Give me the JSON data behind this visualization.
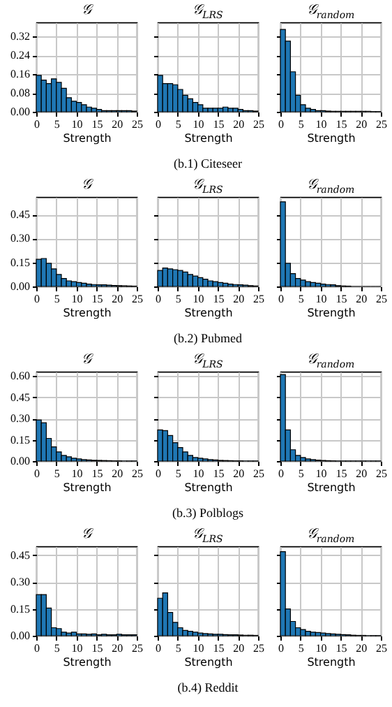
{
  "chart_data": [
    {
      "type": "histogram",
      "title": "𝒢",
      "xlabel": "Strength",
      "bins": [
        0,
        1.25,
        2.5,
        3.75,
        5,
        6.25,
        7.5,
        8.75,
        10,
        11.25,
        12.5,
        13.75,
        15,
        16.25,
        17.5,
        18.75,
        20,
        21.25,
        22.5,
        23.75,
        25
      ],
      "values": [
        0.155,
        0.135,
        0.12,
        0.14,
        0.125,
        0.1,
        0.06,
        0.045,
        0.04,
        0.03,
        0.02,
        0.015,
        0.01,
        0.005,
        0.005,
        0.005,
        0.005,
        0.005,
        0.005,
        0.003
      ],
      "color": "#1f77b4",
      "xlim": [
        0,
        25
      ],
      "xticks": [
        0,
        5,
        10,
        15,
        20,
        25
      ],
      "ylim": [
        0,
        0.38
      ],
      "yticks": [
        {
          "value": 0,
          "label": "0.00"
        },
        {
          "value": 0.08,
          "label": "0.08"
        },
        {
          "value": 0.16,
          "label": "0.16"
        },
        {
          "value": 0.24,
          "label": "0.24"
        },
        {
          "value": 0.32,
          "label": "0.32"
        }
      ],
      "grid": true
    },
    {
      "type": "histogram",
      "title": "𝒢$_{LRS}$",
      "xlabel": "Strength",
      "annotations": [
        "(b.1) Citeseer"
      ],
      "bins": [
        0,
        1.25,
        2.5,
        3.75,
        5,
        6.25,
        7.5,
        8.75,
        10,
        11.25,
        12.5,
        13.75,
        15,
        16.25,
        17.5,
        18.75,
        20,
        21.25,
        22.5,
        23.75,
        25
      ],
      "values": [
        0.155,
        0.12,
        0.12,
        0.115,
        0.095,
        0.07,
        0.055,
        0.04,
        0.03,
        0.015,
        0.015,
        0.015,
        0.015,
        0.02,
        0.015,
        0.015,
        0.01,
        0.005,
        0.005,
        0.003
      ],
      "color": "#1f77b4",
      "xlim": [
        0,
        25
      ],
      "xticks": [
        0,
        5,
        10,
        15,
        20,
        25
      ],
      "ylim": [
        0,
        0.38
      ],
      "yticks": [
        {
          "value": 0,
          "label": null
        },
        {
          "value": 0.08,
          "label": null
        },
        {
          "value": 0.16,
          "label": null
        },
        {
          "value": 0.24,
          "label": null
        },
        {
          "value": 0.32,
          "label": null
        }
      ],
      "grid": true,
      "tick_labels": "x"
    },
    {
      "type": "histogram",
      "title": "𝒢$_{random}$",
      "xlabel": "Strength",
      "bins": [
        0,
        1.25,
        2.5,
        3.75,
        5,
        6.25,
        7.5,
        8.75,
        10,
        11.25,
        12.5,
        13.75,
        15,
        16.25,
        17.5,
        18.75,
        20,
        21.25,
        22.5,
        23.75,
        25
      ],
      "values": [
        0.35,
        0.3,
        0.17,
        0.07,
        0.03,
        0.015,
        0.01,
        0.005,
        0.005,
        0.003,
        0.002,
        0.002,
        0.002,
        0.002,
        0.002,
        0.002,
        0.002,
        0.002,
        0.001,
        0.001
      ],
      "color": "#1f77b4",
      "xlim": [
        0,
        25
      ],
      "xticks": [
        0,
        5,
        10,
        15,
        20,
        25
      ],
      "ylim": [
        0,
        0.38
      ],
      "yticks": [
        {
          "value": 0,
          "label": null
        },
        {
          "value": 0.08,
          "label": null
        },
        {
          "value": 0.16,
          "label": null
        },
        {
          "value": 0.24,
          "label": null
        },
        {
          "value": 0.32,
          "label": null
        }
      ],
      "grid": true,
      "tick_labels": "x"
    },
    {
      "type": "histogram",
      "title": "𝒢",
      "xlabel": "Strength",
      "bins": [
        0,
        1.25,
        2.5,
        3.75,
        5,
        6.25,
        7.5,
        8.75,
        10,
        11.25,
        12.5,
        13.75,
        15,
        16.25,
        17.5,
        18.75,
        20,
        21.25,
        22.5,
        23.75,
        25
      ],
      "values": [
        0.17,
        0.175,
        0.145,
        0.11,
        0.075,
        0.05,
        0.035,
        0.03,
        0.025,
        0.02,
        0.015,
        0.012,
        0.01,
        0.01,
        0.008,
        0.006,
        0.005,
        0.004,
        0.003,
        0.002
      ],
      "color": "#1f77b4",
      "xlim": [
        0,
        25
      ],
      "xticks": [
        0,
        5,
        10,
        15,
        20,
        25
      ],
      "ylim": [
        0,
        0.56
      ],
      "yticks": [
        {
          "value": 0,
          "label": "0.00"
        },
        {
          "value": 0.15,
          "label": "0.15"
        },
        {
          "value": 0.3,
          "label": "0.30"
        },
        {
          "value": 0.45,
          "label": "0.45"
        }
      ],
      "grid": true
    },
    {
      "type": "histogram",
      "title": "𝒢$_{LRS}$",
      "xlabel": "Strength",
      "annotations": [
        "(b.2) Pubmed"
      ],
      "bins": [
        0,
        1.25,
        2.5,
        3.75,
        5,
        6.25,
        7.5,
        8.75,
        10,
        11.25,
        12.5,
        13.75,
        15,
        16.25,
        17.5,
        18.75,
        20,
        21.25,
        22.5,
        23.75,
        25
      ],
      "values": [
        0.1,
        0.115,
        0.11,
        0.105,
        0.1,
        0.09,
        0.075,
        0.065,
        0.055,
        0.045,
        0.035,
        0.03,
        0.025,
        0.02,
        0.015,
        0.012,
        0.01,
        0.008,
        0.005,
        0.003
      ],
      "color": "#1f77b4",
      "xlim": [
        0,
        25
      ],
      "xticks": [
        0,
        5,
        10,
        15,
        20,
        25
      ],
      "ylim": [
        0,
        0.56
      ],
      "yticks": [
        {
          "value": 0,
          "label": null
        },
        {
          "value": 0.15,
          "label": null
        },
        {
          "value": 0.3,
          "label": null
        },
        {
          "value": 0.45,
          "label": null
        }
      ],
      "grid": true,
      "tick_labels": "x"
    },
    {
      "type": "histogram",
      "title": "𝒢$_{random}$",
      "xlabel": "Strength",
      "bins": [
        0,
        1.25,
        2.5,
        3.75,
        5,
        6.25,
        7.5,
        8.75,
        10,
        11.25,
        12.5,
        13.75,
        15,
        16.25,
        17.5,
        18.75,
        20,
        21.25,
        22.5,
        23.75,
        25
      ],
      "values": [
        0.53,
        0.145,
        0.08,
        0.05,
        0.04,
        0.03,
        0.025,
        0.02,
        0.015,
        0.012,
        0.01,
        0.005,
        0.003,
        0.002,
        0,
        0,
        0,
        0,
        0,
        0
      ],
      "color": "#1f77b4",
      "xlim": [
        0,
        25
      ],
      "xticks": [
        0,
        5,
        10,
        15,
        20,
        25
      ],
      "ylim": [
        0,
        0.56
      ],
      "yticks": [
        {
          "value": 0,
          "label": null
        },
        {
          "value": 0.15,
          "label": null
        },
        {
          "value": 0.3,
          "label": null
        },
        {
          "value": 0.45,
          "label": null
        }
      ],
      "grid": true,
      "tick_labels": "x"
    },
    {
      "type": "histogram",
      "title": "𝒢",
      "xlabel": "Strength",
      "bins": [
        0,
        1.25,
        2.5,
        3.75,
        5,
        6.25,
        7.5,
        8.75,
        10,
        11.25,
        12.5,
        13.75,
        15,
        16.25,
        17.5,
        18.75,
        20,
        21.25,
        22.5,
        23.75,
        25
      ],
      "values": [
        0.29,
        0.27,
        0.16,
        0.1,
        0.065,
        0.04,
        0.03,
        0.02,
        0.015,
        0.01,
        0.008,
        0.006,
        0.005,
        0.004,
        0.003,
        0.002,
        0.002,
        0.001,
        0.001,
        0.001
      ],
      "color": "#1f77b4",
      "xlim": [
        0,
        25
      ],
      "xticks": [
        0,
        5,
        10,
        15,
        20,
        25
      ],
      "ylim": [
        0,
        0.63
      ],
      "yticks": [
        {
          "value": 0,
          "label": "0.00"
        },
        {
          "value": 0.15,
          "label": "0.15"
        },
        {
          "value": 0.3,
          "label": "0.30"
        },
        {
          "value": 0.45,
          "label": "0.45"
        },
        {
          "value": 0.6,
          "label": "0.60"
        }
      ],
      "grid": true
    },
    {
      "type": "histogram",
      "title": "𝒢$_{LRS}$",
      "xlabel": "Strength",
      "annotations": [
        "(b.3) Polblogs"
      ],
      "bins": [
        0,
        1.25,
        2.5,
        3.75,
        5,
        6.25,
        7.5,
        8.75,
        10,
        11.25,
        12.5,
        13.75,
        15,
        16.25,
        17.5,
        18.75,
        20,
        21.25,
        22.5,
        23.75,
        25
      ],
      "values": [
        0.22,
        0.215,
        0.18,
        0.13,
        0.095,
        0.065,
        0.04,
        0.025,
        0.02,
        0.015,
        0.01,
        0.008,
        0.005,
        0.004,
        0.003,
        0.002,
        0.002,
        0.001,
        0.001,
        0.001
      ],
      "color": "#1f77b4",
      "xlim": [
        0,
        25
      ],
      "xticks": [
        0,
        5,
        10,
        15,
        20,
        25
      ],
      "ylim": [
        0,
        0.63
      ],
      "yticks": [
        {
          "value": 0,
          "label": null
        },
        {
          "value": 0.15,
          "label": null
        },
        {
          "value": 0.3,
          "label": null
        },
        {
          "value": 0.45,
          "label": null
        },
        {
          "value": 0.6,
          "label": null
        }
      ],
      "grid": true,
      "tick_labels": "x"
    },
    {
      "type": "histogram",
      "title": "𝒢$_{random}$",
      "xlabel": "Strength",
      "bins": [
        0,
        1.25,
        2.5,
        3.75,
        5,
        6.25,
        7.5,
        8.75,
        10,
        11.25,
        12.5,
        13.75,
        15,
        16.25,
        17.5,
        18.75,
        20,
        21.25,
        22.5,
        23.75,
        25
      ],
      "values": [
        0.61,
        0.22,
        0.08,
        0.04,
        0.025,
        0.015,
        0.01,
        0.007,
        0.005,
        0.003,
        0.002,
        0.001,
        0.001,
        0.001,
        0.001,
        0.001,
        0.001,
        0.001,
        0.001,
        0.001
      ],
      "color": "#1f77b4",
      "xlim": [
        0,
        25
      ],
      "xticks": [
        0,
        5,
        10,
        15,
        20,
        25
      ],
      "ylim": [
        0,
        0.63
      ],
      "yticks": [
        {
          "value": 0,
          "label": null
        },
        {
          "value": 0.15,
          "label": null
        },
        {
          "value": 0.3,
          "label": null
        },
        {
          "value": 0.45,
          "label": null
        },
        {
          "value": 0.6,
          "label": null
        }
      ],
      "grid": true,
      "tick_labels": "x"
    },
    {
      "type": "histogram",
      "title": "𝒢",
      "xlabel": "Strength",
      "bins": [
        0,
        1.25,
        2.5,
        3.75,
        5,
        6.25,
        7.5,
        8.75,
        10,
        11.25,
        12.5,
        13.75,
        15,
        16.25,
        17.5,
        18.75,
        20,
        21.25,
        22.5,
        23.75,
        25
      ],
      "values": [
        0.23,
        0.23,
        0.155,
        0.045,
        0.04,
        0.02,
        0.015,
        0.02,
        0.01,
        0.01,
        0.008,
        0.01,
        0.005,
        0.008,
        0.005,
        0.005,
        0.008,
        0.005,
        0.005,
        0.005
      ],
      "color": "#1f77b4",
      "xlim": [
        0,
        25
      ],
      "xticks": [
        0,
        5,
        10,
        15,
        20,
        25
      ],
      "ylim": [
        0,
        0.5
      ],
      "yticks": [
        {
          "value": 0,
          "label": "0.00"
        },
        {
          "value": 0.15,
          "label": "0.15"
        },
        {
          "value": 0.3,
          "label": "0.30"
        },
        {
          "value": 0.45,
          "label": "0.45"
        }
      ],
      "grid": true
    },
    {
      "type": "histogram",
      "title": "𝒢$_{LRS}$",
      "xlabel": "Strength",
      "annotations": [
        "(b.4) Reddit"
      ],
      "bins": [
        0,
        1.25,
        2.5,
        3.75,
        5,
        6.25,
        7.5,
        8.75,
        10,
        11.25,
        12.5,
        13.75,
        15,
        16.25,
        17.5,
        18.75,
        20,
        21.25,
        22.5,
        23.75,
        25
      ],
      "values": [
        0.21,
        0.24,
        0.13,
        0.075,
        0.045,
        0.03,
        0.025,
        0.02,
        0.015,
        0.012,
        0.01,
        0.008,
        0.008,
        0.006,
        0.005,
        0.005,
        0.004,
        0.003,
        0.003,
        0.002
      ],
      "color": "#1f77b4",
      "xlim": [
        0,
        25
      ],
      "xticks": [
        0,
        5,
        10,
        15,
        20,
        25
      ],
      "ylim": [
        0,
        0.5
      ],
      "yticks": [
        {
          "value": 0,
          "label": null
        },
        {
          "value": 0.15,
          "label": null
        },
        {
          "value": 0.3,
          "label": null
        },
        {
          "value": 0.45,
          "label": null
        }
      ],
      "grid": true,
      "tick_labels": "x"
    },
    {
      "type": "histogram",
      "title": "𝒢$_{random}$",
      "xlabel": "Strength",
      "bins": [
        0,
        1.25,
        2.5,
        3.75,
        5,
        6.25,
        7.5,
        8.75,
        10,
        11.25,
        12.5,
        13.75,
        15,
        16.25,
        17.5,
        18.75,
        20,
        21.25,
        22.5,
        23.75,
        25
      ],
      "values": [
        0.47,
        0.15,
        0.08,
        0.045,
        0.035,
        0.025,
        0.02,
        0.018,
        0.015,
        0.012,
        0.01,
        0.008,
        0.006,
        0.005,
        0.003,
        0.002,
        0.002,
        0.001,
        0.001,
        0.001
      ],
      "color": "#1f77b4",
      "xlim": [
        0,
        25
      ],
      "xticks": [
        0,
        5,
        10,
        15,
        20,
        25
      ],
      "ylim": [
        0,
        0.5
      ],
      "yticks": [
        {
          "value": 0,
          "label": null
        },
        {
          "value": 0.15,
          "label": null
        },
        {
          "value": 0.3,
          "label": null
        },
        {
          "value": 0.45,
          "label": null
        }
      ],
      "grid": true,
      "tick_labels": "x"
    }
  ]
}
